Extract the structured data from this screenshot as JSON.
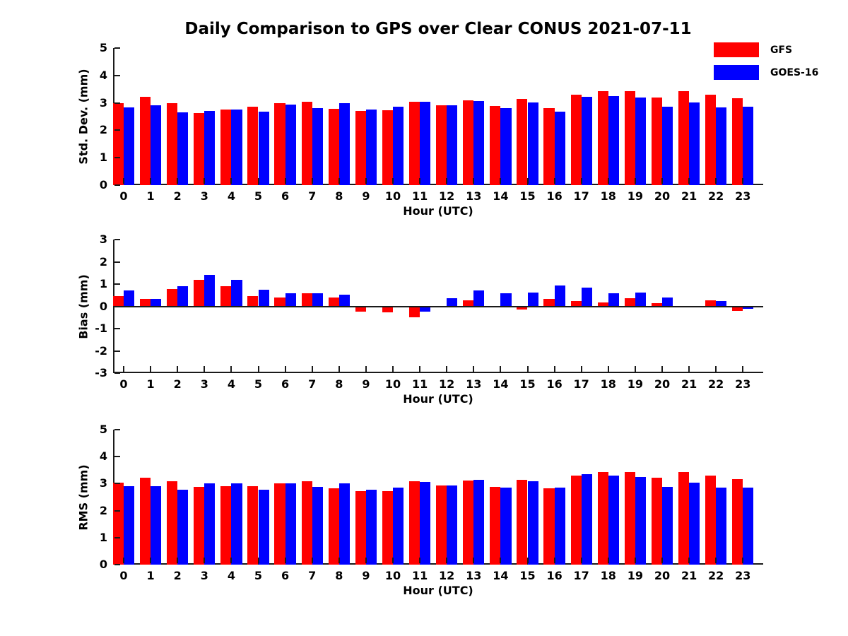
{
  "title": "Daily Comparison to GPS over Clear CONUS 2021-07-11",
  "colors": {
    "gfs": "#ff0000",
    "goes16": "#0000ff",
    "axis": "#1a1a1a"
  },
  "legend": {
    "items": [
      {
        "label": "GFS",
        "color": "#ff0000"
      },
      {
        "label": "GOES-16",
        "color": "#0000ff"
      }
    ]
  },
  "chart_data": [
    {
      "type": "bar",
      "id": "stddev",
      "ylabel": "Std. Dev. (mm)",
      "xlabel": "Hour (UTC)",
      "ylim": [
        0,
        5
      ],
      "yticks": [
        0,
        1,
        2,
        3,
        4,
        5
      ],
      "grid": false,
      "legend_position": "upper-right-outside",
      "categories": [
        "0",
        "1",
        "2",
        "3",
        "4",
        "5",
        "6",
        "7",
        "8",
        "9",
        "10",
        "11",
        "12",
        "13",
        "14",
        "15",
        "16",
        "17",
        "18",
        "19",
        "20",
        "21",
        "22",
        "23"
      ],
      "series": [
        {
          "name": "GFS",
          "color": "#ff0000",
          "values": [
            3.0,
            3.21,
            2.98,
            2.63,
            2.76,
            2.87,
            2.98,
            3.04,
            2.79,
            2.7,
            2.72,
            3.05,
            2.92,
            3.1,
            2.88,
            3.14,
            2.81,
            3.3,
            3.44,
            3.42,
            3.2,
            3.44,
            3.3,
            3.16
          ]
        },
        {
          "name": "GOES-16",
          "color": "#0000ff",
          "values": [
            2.83,
            2.9,
            2.65,
            2.7,
            2.77,
            2.67,
            2.95,
            2.8,
            2.98,
            2.77,
            2.85,
            3.05,
            2.92,
            3.07,
            2.8,
            3.01,
            2.67,
            3.23,
            3.24,
            3.2,
            2.86,
            3.02,
            2.84,
            2.86
          ]
        }
      ]
    },
    {
      "type": "bar",
      "id": "bias",
      "ylabel": "Bias (mm)",
      "xlabel": "Hour (UTC)",
      "ylim": [
        -3,
        3
      ],
      "yticks": [
        -3,
        -2,
        -1,
        0,
        1,
        2,
        3
      ],
      "grid": false,
      "zero_line": true,
      "categories": [
        "0",
        "1",
        "2",
        "3",
        "4",
        "5",
        "6",
        "7",
        "8",
        "9",
        "10",
        "11",
        "12",
        "13",
        "14",
        "15",
        "16",
        "17",
        "18",
        "19",
        "20",
        "21",
        "22",
        "23"
      ],
      "series": [
        {
          "name": "GFS",
          "color": "#ff0000",
          "values": [
            0.45,
            0.32,
            0.78,
            1.2,
            0.89,
            0.45,
            0.4,
            0.6,
            0.4,
            -0.23,
            -0.28,
            -0.5,
            0.03,
            0.28,
            0.02,
            -0.13,
            0.32,
            0.24,
            0.17,
            0.38,
            0.14,
            0.02,
            0.28,
            -0.2
          ]
        },
        {
          "name": "GOES-16",
          "color": "#0000ff",
          "values": [
            0.73,
            0.34,
            0.89,
            1.4,
            1.2,
            0.76,
            0.59,
            0.58,
            0.52,
            -0.05,
            -0.04,
            -0.25,
            0.38,
            0.7,
            0.59,
            0.63,
            0.94,
            0.85,
            0.6,
            0.61,
            0.4,
            -0.03,
            0.24,
            -0.11
          ]
        }
      ]
    },
    {
      "type": "bar",
      "id": "rms",
      "ylabel": "RMS (mm)",
      "xlabel": "Hour (UTC)",
      "ylim": [
        0,
        5
      ],
      "yticks": [
        0,
        1,
        2,
        3,
        4,
        5
      ],
      "grid": false,
      "categories": [
        "0",
        "1",
        "2",
        "3",
        "4",
        "5",
        "6",
        "7",
        "8",
        "9",
        "10",
        "11",
        "12",
        "13",
        "14",
        "15",
        "16",
        "17",
        "18",
        "19",
        "20",
        "21",
        "22",
        "23"
      ],
      "series": [
        {
          "name": "GFS",
          "color": "#ff0000",
          "values": [
            3.03,
            3.23,
            3.08,
            2.89,
            2.9,
            2.91,
            3.01,
            3.1,
            2.82,
            2.71,
            2.73,
            3.09,
            2.92,
            3.11,
            2.88,
            3.14,
            2.83,
            3.31,
            3.44,
            3.44,
            3.21,
            3.44,
            3.31,
            3.17
          ]
        },
        {
          "name": "GOES-16",
          "color": "#0000ff",
          "values": [
            2.91,
            2.9,
            2.78,
            3.02,
            3.0,
            2.78,
            3.01,
            2.87,
            3.02,
            2.77,
            2.85,
            3.06,
            2.94,
            3.15,
            2.86,
            3.08,
            2.85,
            3.34,
            3.29,
            3.25,
            2.88,
            3.03,
            2.85,
            2.86
          ]
        }
      ]
    }
  ]
}
